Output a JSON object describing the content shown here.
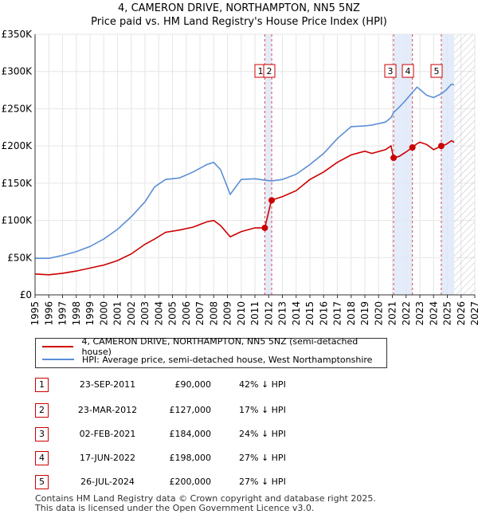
{
  "title_line1": "4, CAMERON DRIVE, NORTHAMPTON, NN5 5NZ",
  "title_line2": "Price paid vs. HM Land Registry's House Price Index (HPI)",
  "colors": {
    "property": "#cc0000",
    "hpi": "#5b8ed6",
    "shade": "#dfe7f8",
    "hatch": "#b0b6c6"
  },
  "chart_data": {
    "type": "line",
    "xlabel": "",
    "ylabel": "",
    "xlim": [
      1995,
      2027
    ],
    "ylim": [
      0,
      350000
    ],
    "y_ticks": [
      {
        "value": 0,
        "label": "£0"
      },
      {
        "value": 50000,
        "label": "£50K"
      },
      {
        "value": 100000,
        "label": "£100K"
      },
      {
        "value": 150000,
        "label": "£150K"
      },
      {
        "value": 200000,
        "label": "£200K"
      },
      {
        "value": 250000,
        "label": "£250K"
      },
      {
        "value": 300000,
        "label": "£300K"
      },
      {
        "value": 350000,
        "label": "£350K"
      }
    ],
    "x_ticks": [
      "1995",
      "1996",
      "1997",
      "1998",
      "1999",
      "2000",
      "2001",
      "2002",
      "2003",
      "2004",
      "2005",
      "2006",
      "2007",
      "2008",
      "2009",
      "2010",
      "2011",
      "2012",
      "2013",
      "2014",
      "2015",
      "2016",
      "2017",
      "2018",
      "2019",
      "2020",
      "2021",
      "2022",
      "2023",
      "2024",
      "2025",
      "2026",
      "2027"
    ],
    "forecast_start": 2025.5,
    "series": [
      {
        "name": "4, CAMERON DRIVE, NORTHAMPTON, NN5 5NZ (semi-detached house)",
        "points": [
          [
            1995.0,
            28000
          ],
          [
            1996.0,
            27000
          ],
          [
            1997.0,
            29000
          ],
          [
            1998.0,
            32000
          ],
          [
            1999.0,
            36000
          ],
          [
            2000.0,
            40000
          ],
          [
            2001.0,
            46000
          ],
          [
            2002.0,
            55000
          ],
          [
            2003.0,
            68000
          ],
          [
            2003.7,
            75000
          ],
          [
            2004.5,
            84000
          ],
          [
            2005.5,
            87000
          ],
          [
            2006.5,
            91000
          ],
          [
            2007.5,
            98000
          ],
          [
            2008.0,
            100000
          ],
          [
            2008.5,
            93000
          ],
          [
            2009.2,
            78000
          ],
          [
            2010.0,
            85000
          ],
          [
            2011.0,
            90000
          ],
          [
            2011.72,
            90000
          ],
          [
            2012.2,
            127000
          ],
          [
            2013.0,
            132000
          ],
          [
            2014.0,
            140000
          ],
          [
            2015.0,
            155000
          ],
          [
            2016.0,
            165000
          ],
          [
            2017.0,
            178000
          ],
          [
            2018.0,
            188000
          ],
          [
            2019.0,
            193000
          ],
          [
            2019.5,
            190000
          ],
          [
            2020.5,
            195000
          ],
          [
            2020.9,
            200000
          ],
          [
            2021.09,
            184000
          ],
          [
            2021.5,
            186000
          ],
          [
            2022.0,
            192000
          ],
          [
            2022.46,
            198000
          ],
          [
            2022.8,
            203000
          ],
          [
            2023.0,
            205000
          ],
          [
            2023.5,
            202000
          ],
          [
            2024.0,
            195000
          ],
          [
            2024.56,
            200000
          ],
          [
            2024.9,
            202000
          ],
          [
            2025.3,
            207000
          ],
          [
            2025.5,
            205000
          ]
        ]
      },
      {
        "name": "HPI: Average price, semi-detached house, West Northamptonshire",
        "points": [
          [
            1995.0,
            49000
          ],
          [
            1996.0,
            49000
          ],
          [
            1997.0,
            53000
          ],
          [
            1998.0,
            58000
          ],
          [
            1999.0,
            65000
          ],
          [
            2000.0,
            75000
          ],
          [
            2001.0,
            88000
          ],
          [
            2002.0,
            105000
          ],
          [
            2003.0,
            125000
          ],
          [
            2003.7,
            145000
          ],
          [
            2004.5,
            155000
          ],
          [
            2005.5,
            157000
          ],
          [
            2006.5,
            165000
          ],
          [
            2007.5,
            175000
          ],
          [
            2008.0,
            178000
          ],
          [
            2008.5,
            168000
          ],
          [
            2009.2,
            135000
          ],
          [
            2010.0,
            155000
          ],
          [
            2011.0,
            156000
          ],
          [
            2011.72,
            154000
          ],
          [
            2012.2,
            153000
          ],
          [
            2013.0,
            155000
          ],
          [
            2014.0,
            162000
          ],
          [
            2015.0,
            175000
          ],
          [
            2016.0,
            190000
          ],
          [
            2017.0,
            210000
          ],
          [
            2018.0,
            226000
          ],
          [
            2019.0,
            227000
          ],
          [
            2019.5,
            228000
          ],
          [
            2020.5,
            232000
          ],
          [
            2020.9,
            238000
          ],
          [
            2021.09,
            245000
          ],
          [
            2021.5,
            252000
          ],
          [
            2022.0,
            262000
          ],
          [
            2022.46,
            272000
          ],
          [
            2022.8,
            279000
          ],
          [
            2023.0,
            276000
          ],
          [
            2023.5,
            268000
          ],
          [
            2024.0,
            265000
          ],
          [
            2024.56,
            270000
          ],
          [
            2024.9,
            275000
          ],
          [
            2025.3,
            283000
          ],
          [
            2025.5,
            282000
          ]
        ]
      }
    ],
    "sales": [
      {
        "id": "1",
        "year": 2011.72,
        "price": 90000
      },
      {
        "id": "2",
        "year": 2012.22,
        "price": 127000
      },
      {
        "id": "3",
        "year": 2021.09,
        "price": 184000
      },
      {
        "id": "4",
        "year": 2022.46,
        "price": 198000
      },
      {
        "id": "5",
        "year": 2024.56,
        "price": 200000
      }
    ],
    "shaded_periods": [
      [
        2011.72,
        2012.22
      ],
      [
        2021.09,
        2022.46
      ],
      [
        2024.56,
        2025.5
      ]
    ]
  },
  "legend": {
    "property": "4, CAMERON DRIVE, NORTHAMPTON, NN5 5NZ (semi-detached house)",
    "hpi": "HPI: Average price, semi-detached house, West Northamptonshire"
  },
  "table": [
    {
      "id": "1",
      "date": "23-SEP-2011",
      "price": "£90,000",
      "hpi": "42% ↓ HPI"
    },
    {
      "id": "2",
      "date": "23-MAR-2012",
      "price": "£127,000",
      "hpi": "17% ↓ HPI"
    },
    {
      "id": "3",
      "date": "02-FEB-2021",
      "price": "£184,000",
      "hpi": "24% ↓ HPI"
    },
    {
      "id": "4",
      "date": "17-JUN-2022",
      "price": "£198,000",
      "hpi": "27% ↓ HPI"
    },
    {
      "id": "5",
      "date": "26-JUL-2024",
      "price": "£200,000",
      "hpi": "27% ↓ HPI"
    }
  ],
  "footer": {
    "line1": "Contains HM Land Registry data © Crown copyright and database right 2025.",
    "line2": "This data is licensed under the Open Government Licence v3.0."
  }
}
